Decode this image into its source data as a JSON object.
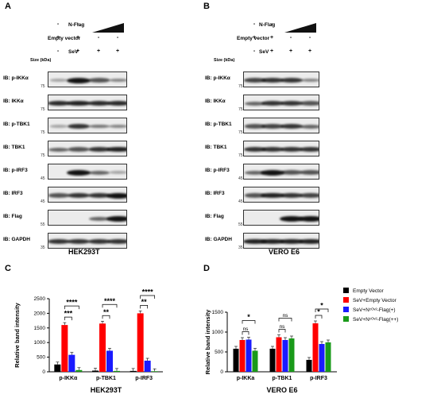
{
  "panels": {
    "a": "A",
    "b": "B",
    "c": "C",
    "d": "D"
  },
  "conditions": {
    "nflag": "N-Flag",
    "empty_vector": "Empty vector",
    "sev": "SeV",
    "size": "Size (kDa)",
    "rows": {
      "empty_vector": [
        "+",
        "+",
        "-",
        "-"
      ],
      "sev": [
        "-",
        "+",
        "+",
        "+"
      ],
      "nflag": [
        "-",
        "-"
      ]
    }
  },
  "blots": [
    {
      "label": "IB: p-IKKα",
      "size": "75"
    },
    {
      "label": "IB: IKKα",
      "size": "75"
    },
    {
      "label": "IB: p-TBK1",
      "size": "75"
    },
    {
      "label": "IB: TBK1",
      "size": "75"
    },
    {
      "label": "IB: p-IRF3",
      "size": "45"
    },
    {
      "label": "IB: IRF3",
      "size": "45"
    },
    {
      "label": "IB: Flag",
      "size": "55"
    },
    {
      "label": "IB: GAPDH",
      "size": "35"
    }
  ],
  "cell_lines": {
    "left": "HEK293T",
    "right": "VERO E6"
  },
  "chart_data": [
    {
      "type": "bar",
      "panel": "C",
      "xlabel": "HEK293T",
      "ylabel": "Relative band intensity",
      "ylim": [
        0,
        2500
      ],
      "yticks": [
        "0",
        "500",
        "1000",
        "1500",
        "2000",
        "2500"
      ],
      "categories": [
        "p-IKKα",
        "p-TBK1",
        "p-IRF3"
      ],
      "series": [
        {
          "values": [
            250,
            40,
            30
          ],
          "color": "#000000"
        },
        {
          "values": [
            1600,
            1650,
            2000
          ],
          "color": "#ff0000"
        },
        {
          "values": [
            580,
            720,
            380
          ],
          "color": "#1a1aff"
        },
        {
          "values": [
            60,
            30,
            20
          ],
          "color": "#1a9a1a"
        }
      ],
      "significance": [
        {
          "category": 0,
          "brackets": [
            "***",
            "****"
          ]
        },
        {
          "category": 1,
          "brackets": [
            "**",
            "****"
          ]
        },
        {
          "category": 2,
          "brackets": [
            "**",
            "****"
          ]
        }
      ]
    },
    {
      "type": "bar",
      "panel": "D",
      "xlabel": "VERO E6",
      "ylabel": "Relative band intensity",
      "ylim": [
        0,
        1500
      ],
      "yticks": [
        "0",
        "500",
        "1000",
        "1500"
      ],
      "categories": [
        "p-IKKa",
        "p-TBK1",
        "p-IRF3"
      ],
      "series": [
        {
          "name": "Empty Vector",
          "values": [
            580,
            580,
            300
          ],
          "color": "#000000"
        },
        {
          "name": "SeV+Empty Vector",
          "values": [
            800,
            870,
            1220
          ],
          "color": "#ff0000"
        },
        {
          "name": "SeV+Nᶜᴼᵛ²-Flag(+)",
          "values": [
            810,
            800,
            700
          ],
          "color": "#1a1aff"
        },
        {
          "name": "SeV+Nᶜᴼᵛ²-Flag(++)",
          "values": [
            530,
            840,
            740
          ],
          "color": "#1a9a1a"
        }
      ],
      "significance": [
        {
          "category": 0,
          "brackets": [
            "ns",
            "*"
          ]
        },
        {
          "category": 1,
          "brackets": [
            "ns",
            "ns"
          ]
        },
        {
          "category": 2,
          "brackets": [
            "*",
            "*"
          ]
        }
      ]
    }
  ]
}
